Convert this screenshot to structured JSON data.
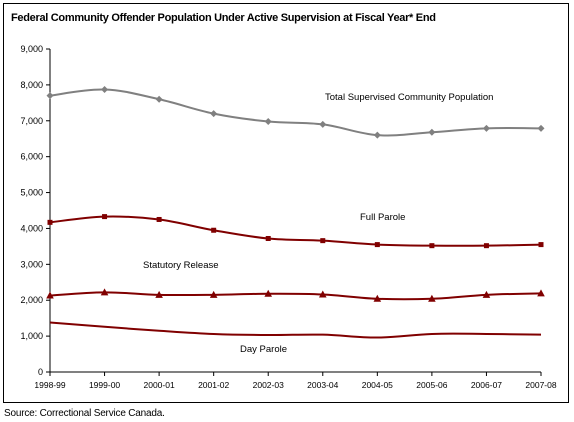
{
  "title": "Federal Community Offender Population Under Active Supervision at Fiscal Year* End",
  "source": "Source:  Correctional Service Canada.",
  "chart_data": {
    "type": "line",
    "categories": [
      "1998-99",
      "1999-00",
      "2000-01",
      "2001-02",
      "2002-03",
      "2003-04",
      "2004-05",
      "2005-06",
      "2006-07",
      "2007-08"
    ],
    "ylim": [
      0,
      9000
    ],
    "yticks": [
      0,
      1000,
      2000,
      3000,
      4000,
      5000,
      6000,
      7000,
      8000,
      9000
    ],
    "ytick_labels": [
      "0",
      "1,000",
      "2,000",
      "3,000",
      "4,000",
      "5,000",
      "6,000",
      "7,000",
      "8,000",
      "9,000"
    ],
    "grid": false,
    "series": [
      {
        "name": "Total Supervised Community Population",
        "color": "#808080",
        "marker": "diamond",
        "values": [
          7700,
          7870,
          7600,
          7200,
          6980,
          6900,
          6600,
          6680,
          6790,
          6790
        ]
      },
      {
        "name": "Full Parole",
        "color": "#800000",
        "marker": "square",
        "values": [
          4170,
          4330,
          4250,
          3950,
          3720,
          3660,
          3550,
          3520,
          3520,
          3550
        ]
      },
      {
        "name": "Statutory Release",
        "color": "#800000",
        "marker": "triangle",
        "values": [
          2130,
          2220,
          2150,
          2150,
          2180,
          2160,
          2040,
          2040,
          2150,
          2190
        ]
      },
      {
        "name": "Day Parole",
        "color": "#800000",
        "marker": "none",
        "values": [
          1380,
          1260,
          1150,
          1060,
          1030,
          1040,
          960,
          1060,
          1060,
          1040
        ]
      }
    ]
  }
}
